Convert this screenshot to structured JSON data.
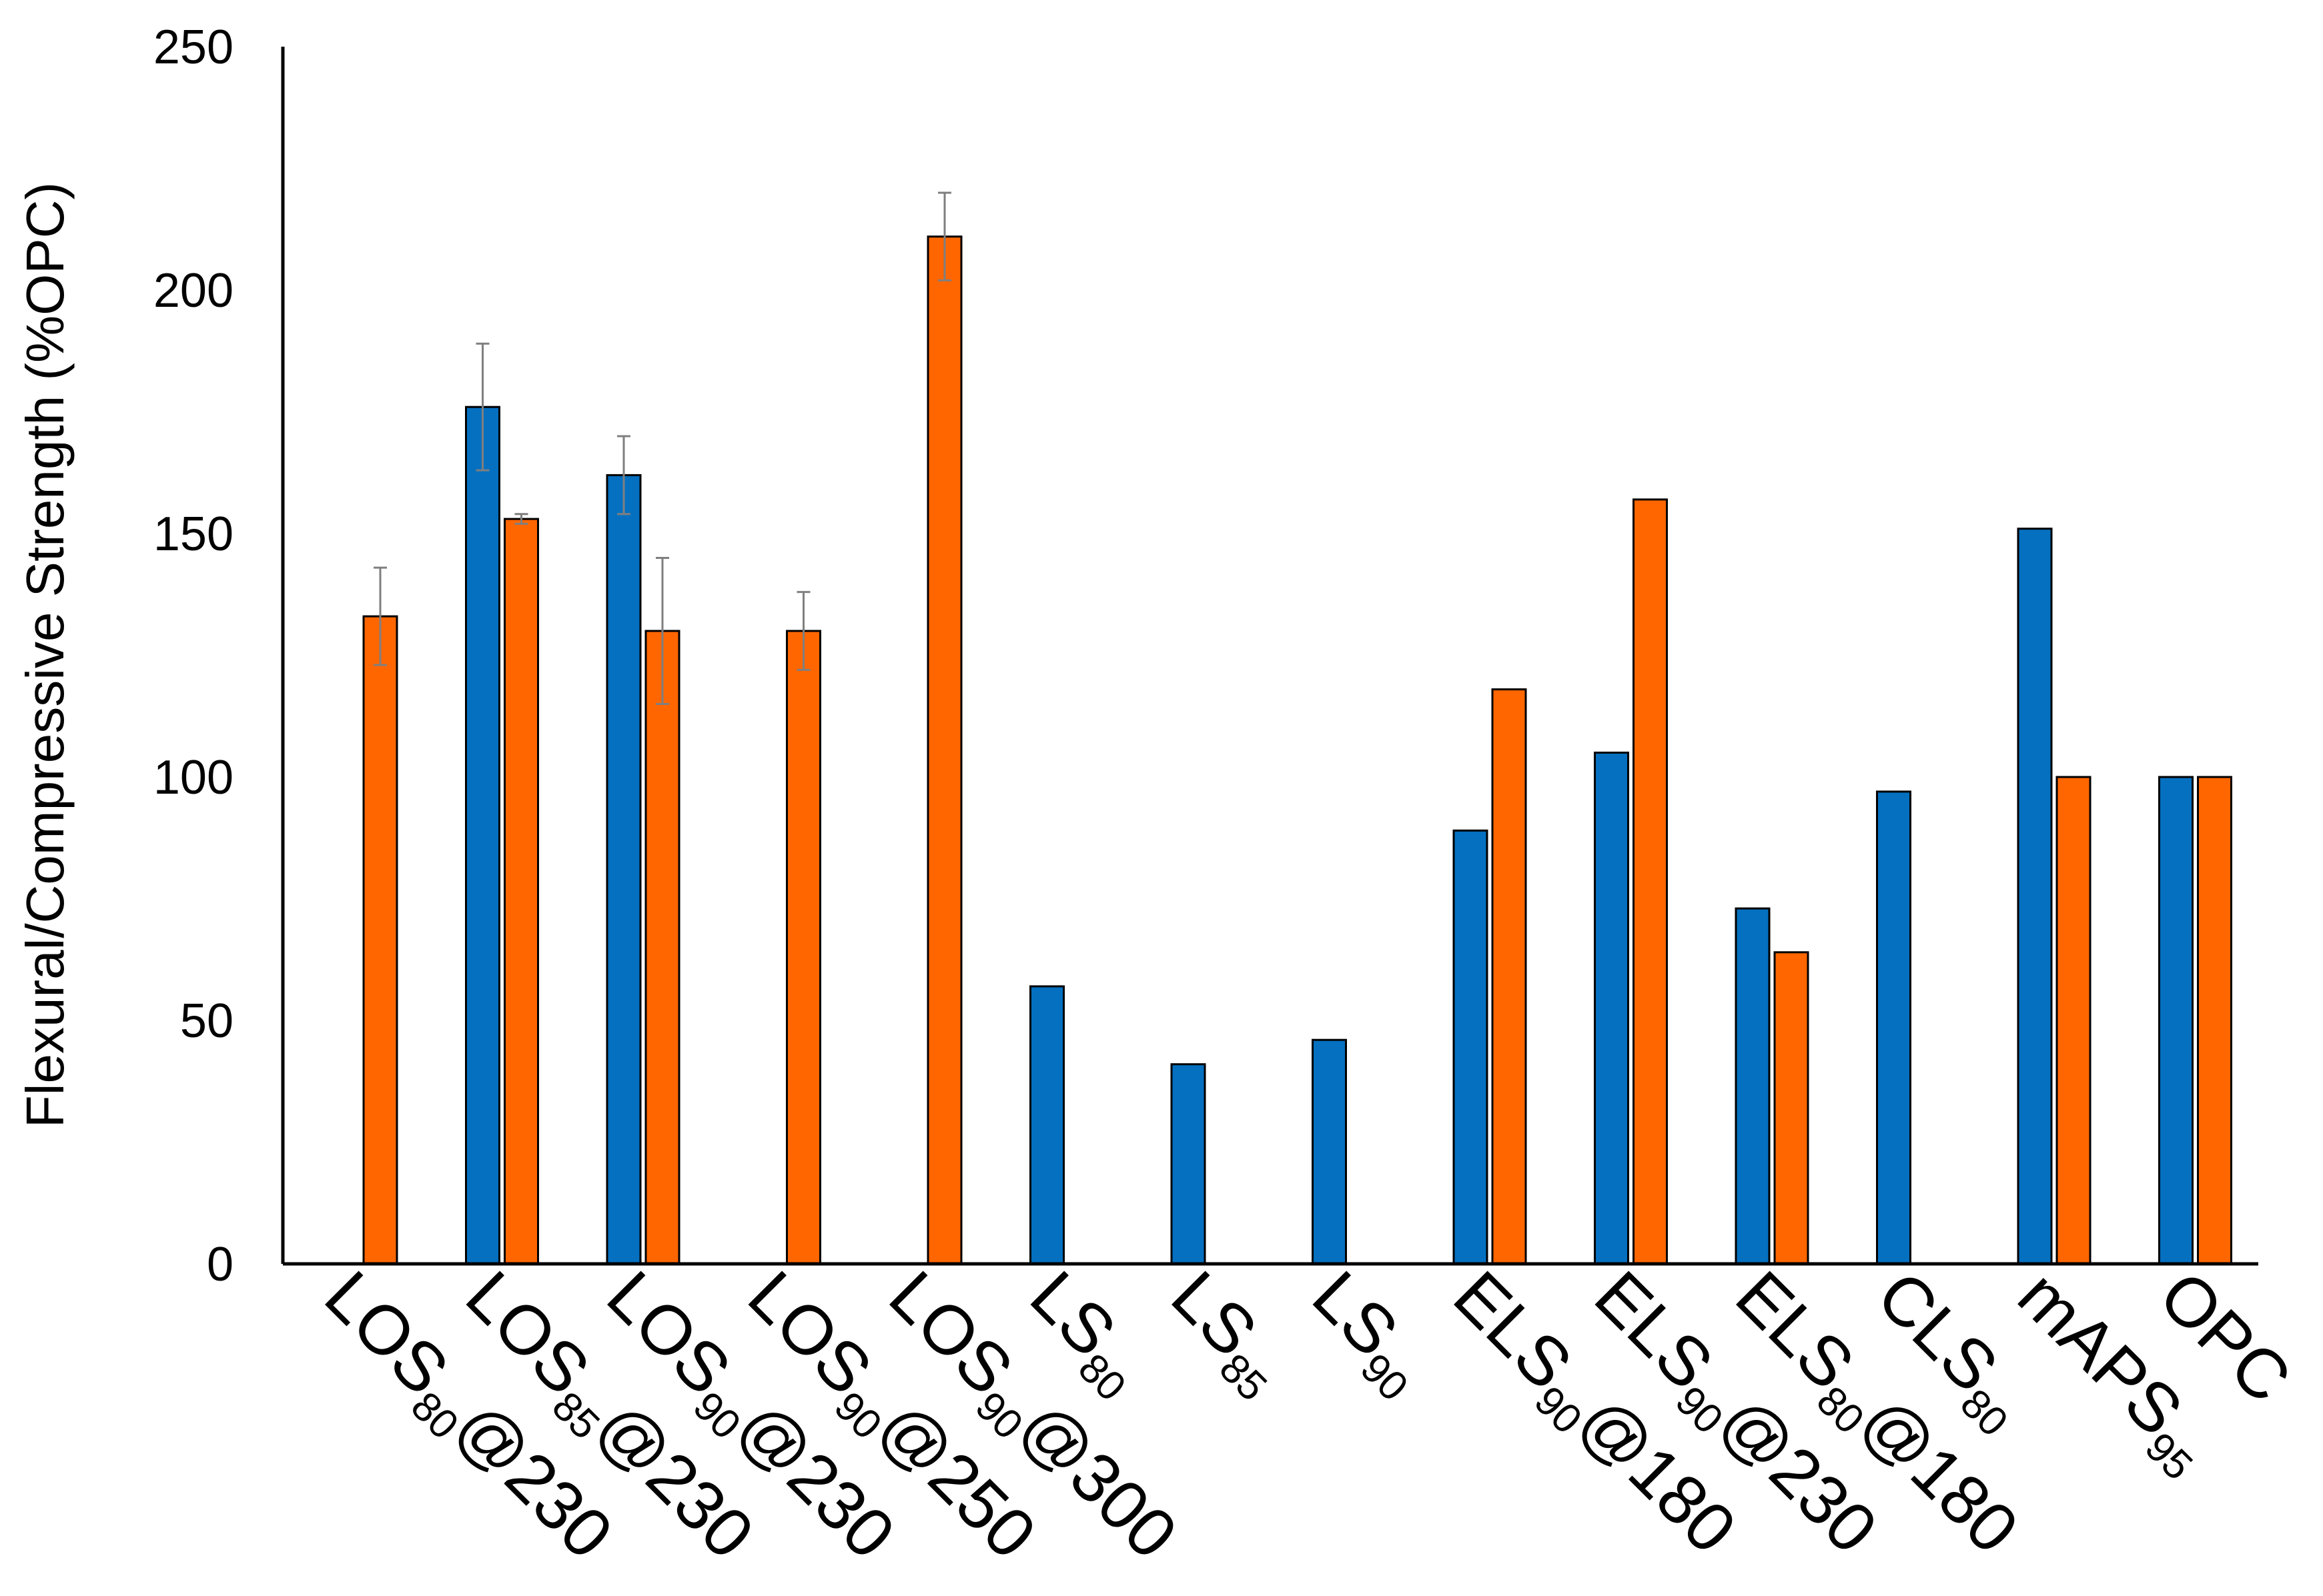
{
  "chart_data": {
    "type": "bar",
    "ylabel": "Flexural/Compressive Strength (%OPC)",
    "ylim": [
      0,
      250
    ],
    "yticks": [
      0,
      50,
      100,
      150,
      200,
      250
    ],
    "grid": false,
    "legend": "none",
    "colors": {
      "blue": "#0570C0",
      "orange": "#FF6600",
      "outline": "#000000",
      "error_bar": "#7F7F7F"
    },
    "categories": [
      {
        "main": "LOS",
        "sub": "80",
        "suffix": "@230"
      },
      {
        "main": "LOS",
        "sub": "85",
        "suffix": "@230"
      },
      {
        "main": "LOS",
        "sub": "90",
        "suffix": "@230"
      },
      {
        "main": "LOS",
        "sub": "90",
        "suffix": "@250"
      },
      {
        "main": "LOS",
        "sub": "90",
        "suffix": "@300"
      },
      {
        "main": "LS",
        "sub": "80",
        "suffix": ""
      },
      {
        "main": "LS",
        "sub": "85",
        "suffix": ""
      },
      {
        "main": "LS",
        "sub": "90",
        "suffix": ""
      },
      {
        "main": "ELS",
        "sub": "90",
        "suffix": "@180"
      },
      {
        "main": "ELS",
        "sub": "90",
        "suffix": "@230"
      },
      {
        "main": "ELS",
        "sub": "80",
        "suffix": "@180"
      },
      {
        "main": "CLS",
        "sub": "80",
        "suffix": ""
      },
      {
        "main": "mAPS",
        "sub": "95",
        "suffix": ""
      },
      {
        "main": "OPC",
        "sub": "",
        "suffix": ""
      }
    ],
    "series": [
      {
        "color": "blue",
        "values": [
          null,
          176,
          162,
          null,
          null,
          57,
          41,
          46,
          89,
          105,
          73,
          97,
          151,
          100
        ],
        "errors": [
          null,
          13,
          8,
          null,
          null,
          null,
          null,
          null,
          null,
          null,
          null,
          null,
          null,
          null
        ]
      },
      {
        "color": "orange",
        "values": [
          133,
          153,
          130,
          130,
          211,
          null,
          null,
          null,
          118,
          157,
          64,
          null,
          100,
          100
        ],
        "errors": [
          10,
          1,
          15,
          8,
          9,
          null,
          null,
          null,
          null,
          null,
          null,
          null,
          null,
          null
        ]
      }
    ]
  }
}
